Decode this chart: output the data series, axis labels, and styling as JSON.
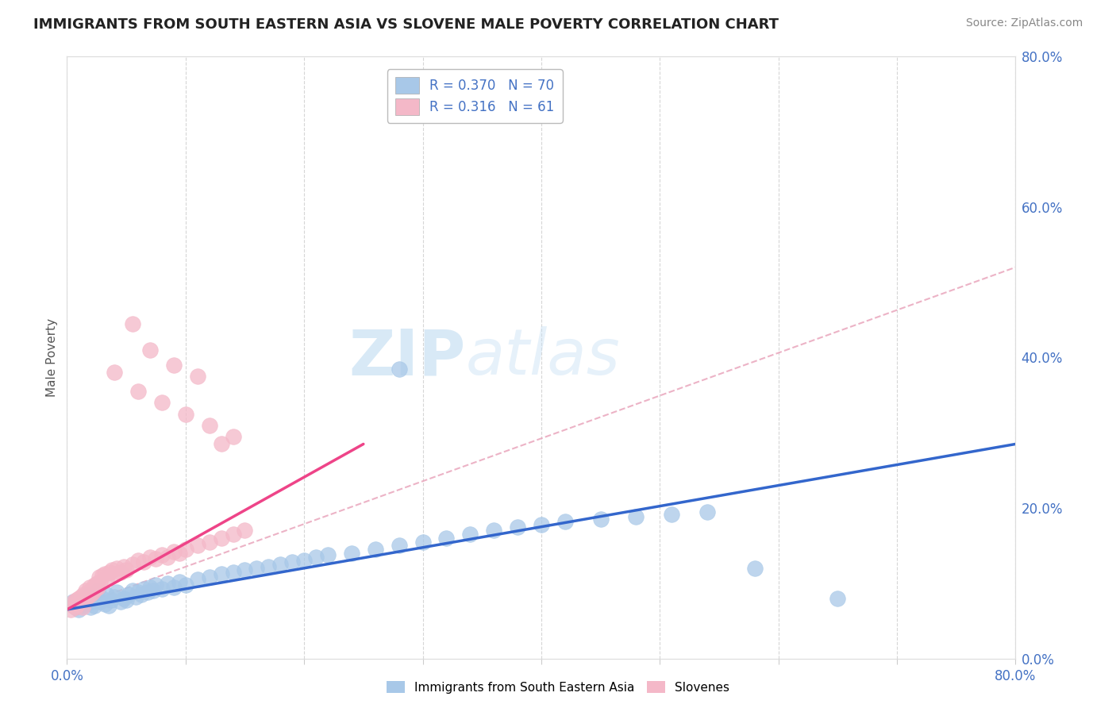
{
  "title": "IMMIGRANTS FROM SOUTH EASTERN ASIA VS SLOVENE MALE POVERTY CORRELATION CHART",
  "source": "Source: ZipAtlas.com",
  "ylabel": "Male Poverty",
  "legend_label_blue": "Immigrants from South Eastern Asia",
  "legend_label_pink": "Slovenes",
  "R_blue": 0.37,
  "N_blue": 70,
  "R_pink": 0.316,
  "N_pink": 61,
  "blue_color": "#a8c8e8",
  "pink_color": "#f4b8c8",
  "blue_line_color": "#3366cc",
  "pink_line_color": "#ee4488",
  "dashed_color": "#e8a0b8",
  "watermark_color": "#d0e8f5",
  "xlim": [
    0.0,
    0.8
  ],
  "ylim": [
    0.0,
    0.8
  ],
  "blue_x": [
    0.005,
    0.007,
    0.008,
    0.01,
    0.012,
    0.013,
    0.015,
    0.016,
    0.018,
    0.02,
    0.021,
    0.022,
    0.023,
    0.025,
    0.026,
    0.028,
    0.03,
    0.032,
    0.033,
    0.035,
    0.037,
    0.04,
    0.042,
    0.045,
    0.048,
    0.05,
    0.052,
    0.055,
    0.058,
    0.06,
    0.063,
    0.065,
    0.068,
    0.07,
    0.073,
    0.075,
    0.08,
    0.085,
    0.09,
    0.095,
    0.1,
    0.11,
    0.12,
    0.13,
    0.14,
    0.15,
    0.16,
    0.17,
    0.18,
    0.19,
    0.2,
    0.21,
    0.22,
    0.24,
    0.26,
    0.28,
    0.3,
    0.32,
    0.34,
    0.36,
    0.38,
    0.4,
    0.42,
    0.45,
    0.48,
    0.51,
    0.54,
    0.28,
    0.58,
    0.65
  ],
  "blue_y": [
    0.075,
    0.068,
    0.072,
    0.065,
    0.078,
    0.07,
    0.08,
    0.072,
    0.085,
    0.068,
    0.075,
    0.082,
    0.07,
    0.078,
    0.09,
    0.075,
    0.08,
    0.072,
    0.085,
    0.07,
    0.078,
    0.082,
    0.088,
    0.075,
    0.08,
    0.078,
    0.085,
    0.09,
    0.082,
    0.088,
    0.085,
    0.092,
    0.088,
    0.095,
    0.09,
    0.098,
    0.092,
    0.1,
    0.095,
    0.102,
    0.098,
    0.105,
    0.108,
    0.112,
    0.115,
    0.118,
    0.12,
    0.122,
    0.125,
    0.128,
    0.13,
    0.135,
    0.138,
    0.14,
    0.145,
    0.15,
    0.155,
    0.16,
    0.165,
    0.17,
    0.175,
    0.178,
    0.182,
    0.185,
    0.188,
    0.192,
    0.195,
    0.385,
    0.12,
    0.08
  ],
  "pink_x": [
    0.003,
    0.005,
    0.006,
    0.007,
    0.008,
    0.009,
    0.01,
    0.011,
    0.012,
    0.013,
    0.014,
    0.015,
    0.016,
    0.017,
    0.018,
    0.019,
    0.02,
    0.021,
    0.022,
    0.023,
    0.024,
    0.025,
    0.026,
    0.027,
    0.028,
    0.03,
    0.032,
    0.034,
    0.036,
    0.038,
    0.04,
    0.042,
    0.045,
    0.048,
    0.05,
    0.055,
    0.06,
    0.065,
    0.07,
    0.075,
    0.08,
    0.085,
    0.09,
    0.095,
    0.1,
    0.11,
    0.12,
    0.13,
    0.14,
    0.15,
    0.04,
    0.06,
    0.08,
    0.1,
    0.12,
    0.14,
    0.055,
    0.07,
    0.09,
    0.11,
    0.13
  ],
  "pink_y": [
    0.065,
    0.07,
    0.075,
    0.068,
    0.078,
    0.072,
    0.08,
    0.075,
    0.082,
    0.068,
    0.085,
    0.078,
    0.09,
    0.082,
    0.088,
    0.095,
    0.085,
    0.092,
    0.088,
    0.098,
    0.092,
    0.1,
    0.095,
    0.108,
    0.102,
    0.11,
    0.112,
    0.108,
    0.115,
    0.118,
    0.112,
    0.12,
    0.115,
    0.122,
    0.118,
    0.125,
    0.13,
    0.128,
    0.135,
    0.132,
    0.138,
    0.135,
    0.142,
    0.14,
    0.145,
    0.15,
    0.155,
    0.16,
    0.165,
    0.17,
    0.38,
    0.355,
    0.34,
    0.325,
    0.31,
    0.295,
    0.445,
    0.41,
    0.39,
    0.375,
    0.285
  ],
  "blue_trend": [
    0.0,
    0.8,
    0.065,
    0.285
  ],
  "pink_trend_solid": [
    0.0,
    0.25,
    0.065,
    0.285
  ],
  "pink_trend_dashed": [
    0.0,
    0.8,
    0.065,
    0.52
  ],
  "xtick_positions": [
    0.0,
    0.1,
    0.2,
    0.3,
    0.4,
    0.5,
    0.6,
    0.7,
    0.8
  ],
  "ytick_positions": [
    0.0,
    0.2,
    0.4,
    0.6,
    0.8
  ],
  "ytick_labels": [
    "0.0%",
    "20.0%",
    "40.0%",
    "60.0%",
    "80.0%"
  ],
  "xtick_labels_show": {
    "0.0": "0.0%",
    "0.8": "80.0%"
  }
}
